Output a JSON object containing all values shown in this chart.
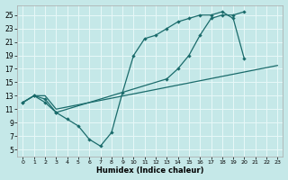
{
  "xlabel": "Humidex (Indice chaleur)",
  "xlim": [
    -0.5,
    23.5
  ],
  "ylim": [
    4,
    26.5
  ],
  "xticks": [
    0,
    1,
    2,
    3,
    4,
    5,
    6,
    7,
    8,
    9,
    10,
    11,
    12,
    13,
    14,
    15,
    16,
    17,
    18,
    19,
    20,
    21,
    22,
    23
  ],
  "yticks": [
    5,
    7,
    9,
    11,
    13,
    15,
    17,
    19,
    21,
    23,
    25
  ],
  "bg_color": "#c5e8e8",
  "grid_color": "#e8f8f8",
  "line_color": "#1a6b6b",
  "curve1_x": [
    0,
    1,
    2,
    3,
    4,
    5,
    6,
    7,
    8,
    9,
    10,
    11,
    12,
    13,
    14,
    15,
    16,
    17,
    18,
    19,
    20
  ],
  "curve1_y": [
    12,
    13,
    12,
    10.5,
    9.5,
    8.5,
    6.5,
    5.5,
    7.5,
    13.5,
    19,
    21.5,
    22,
    23,
    24,
    24.5,
    25,
    25,
    25.5,
    24.5,
    18.5
  ],
  "curve2_x": [
    0,
    1,
    2,
    3,
    13,
    14,
    15,
    16,
    17,
    18,
    19,
    20
  ],
  "curve2_y": [
    12,
    13,
    12.5,
    10.5,
    15.5,
    17,
    19,
    22,
    24.5,
    25,
    25,
    25.5
  ],
  "curve3_x": [
    0,
    1,
    2,
    3,
    23
  ],
  "curve3_y": [
    12,
    13,
    13,
    11,
    17.5
  ]
}
